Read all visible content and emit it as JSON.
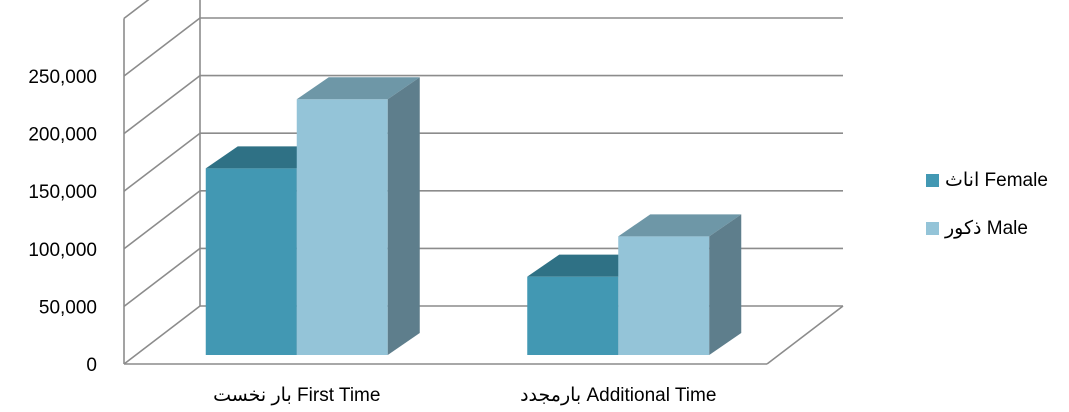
{
  "chart_data": {
    "type": "bar",
    "style": "3d-clustered-column",
    "categories": [
      "بار نخست First Time",
      "بارمجدد Additional Time"
    ],
    "series": [
      {
        "name": "اناث Female",
        "values": [
          162000,
          68000
        ],
        "color": "#4298B3",
        "top_color": "#2F7185",
        "side_color": "#2D6F84"
      },
      {
        "name": "ذكور  Male",
        "values": [
          222000,
          103000
        ],
        "color": "#94C4D8",
        "top_color": "#6E97A7",
        "side_color": "#5E7E8C"
      }
    ],
    "y_ticks": [
      "0",
      "50,000",
      "100,000",
      "150,000",
      "200,000",
      "250,000"
    ],
    "ylim": [
      0,
      300000
    ],
    "grid": true,
    "legend_position": "right",
    "title": "",
    "xlabel": "",
    "ylabel": ""
  }
}
